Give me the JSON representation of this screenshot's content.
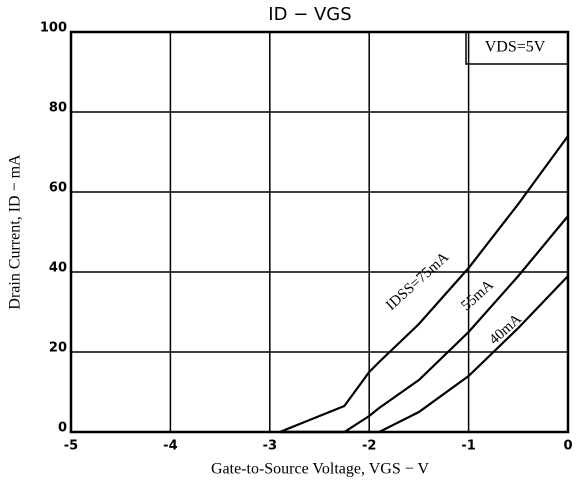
{
  "chart_data": {
    "type": "line",
    "title": "ID − VGS",
    "annotation": "VDS=5V",
    "xlabel": "Gate-to-Source Voltage, VGS − V",
    "ylabel": "Drain Current, ID − mA",
    "x": [
      -2.9,
      -2.25,
      -2,
      -1.9,
      -1.5,
      -1,
      -0.5,
      0
    ],
    "series": [
      {
        "name": "IDSS=75mA",
        "color": "#000000",
        "values": [
          0,
          6.5,
          15,
          17.5,
          27,
          41,
          57,
          74
        ]
      },
      {
        "name": "55mA",
        "color": "#000000",
        "values": [
          0,
          0,
          4,
          6,
          13,
          25,
          39,
          54
        ]
      },
      {
        "name": "40mA",
        "color": "#000000",
        "values": [
          0,
          0,
          0,
          0,
          5,
          14,
          26,
          39
        ]
      }
    ],
    "xlim": [
      -5,
      0
    ],
    "ylim": [
      0,
      100
    ],
    "xticks": [
      -5,
      -4,
      -3,
      -2,
      -1,
      0
    ],
    "yticks": [
      0,
      20,
      40,
      60,
      80,
      100
    ],
    "grid": true
  }
}
